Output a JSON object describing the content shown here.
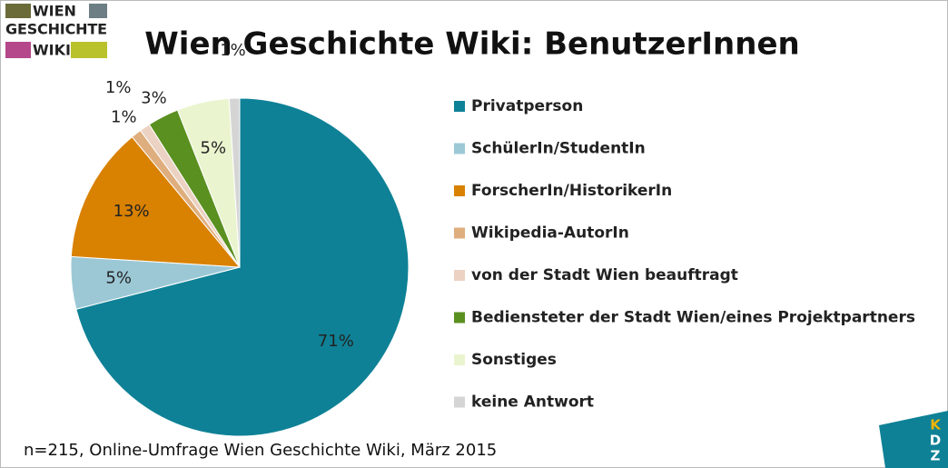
{
  "logo": {
    "lines": [
      "WIEN",
      "GESCHICHTE",
      "WIKI"
    ]
  },
  "corner_logo": [
    "K",
    "D",
    "Z"
  ],
  "chart_data": {
    "type": "pie",
    "title": "Wien Geschichte Wiki: BenutzerInnen",
    "note": "n=215, Online-Umfrage Wien Geschichte Wiki, März 2015",
    "categories": [
      "Privatperson",
      "SchülerIn/StudentIn",
      "ForscherIn/HistorikerIn",
      "Wikipedia-AutorIn",
      "von der Stadt Wien beauftragt",
      "Bediensteter der Stadt Wien/eines Projektpartners",
      "Sonstiges",
      "keine Antwort"
    ],
    "values": [
      71,
      5,
      13,
      1,
      1,
      3,
      5,
      1
    ],
    "value_labels": [
      "71%",
      "5%",
      "13%",
      "1%",
      "1%",
      "3%",
      "5%",
      "1%"
    ],
    "colors": [
      "#0e8196",
      "#9cc8d6",
      "#d98100",
      "#dfae7e",
      "#ebd2c2",
      "#5a9020",
      "#eaf5cf",
      "#d5d5d5"
    ],
    "legend": "right"
  }
}
